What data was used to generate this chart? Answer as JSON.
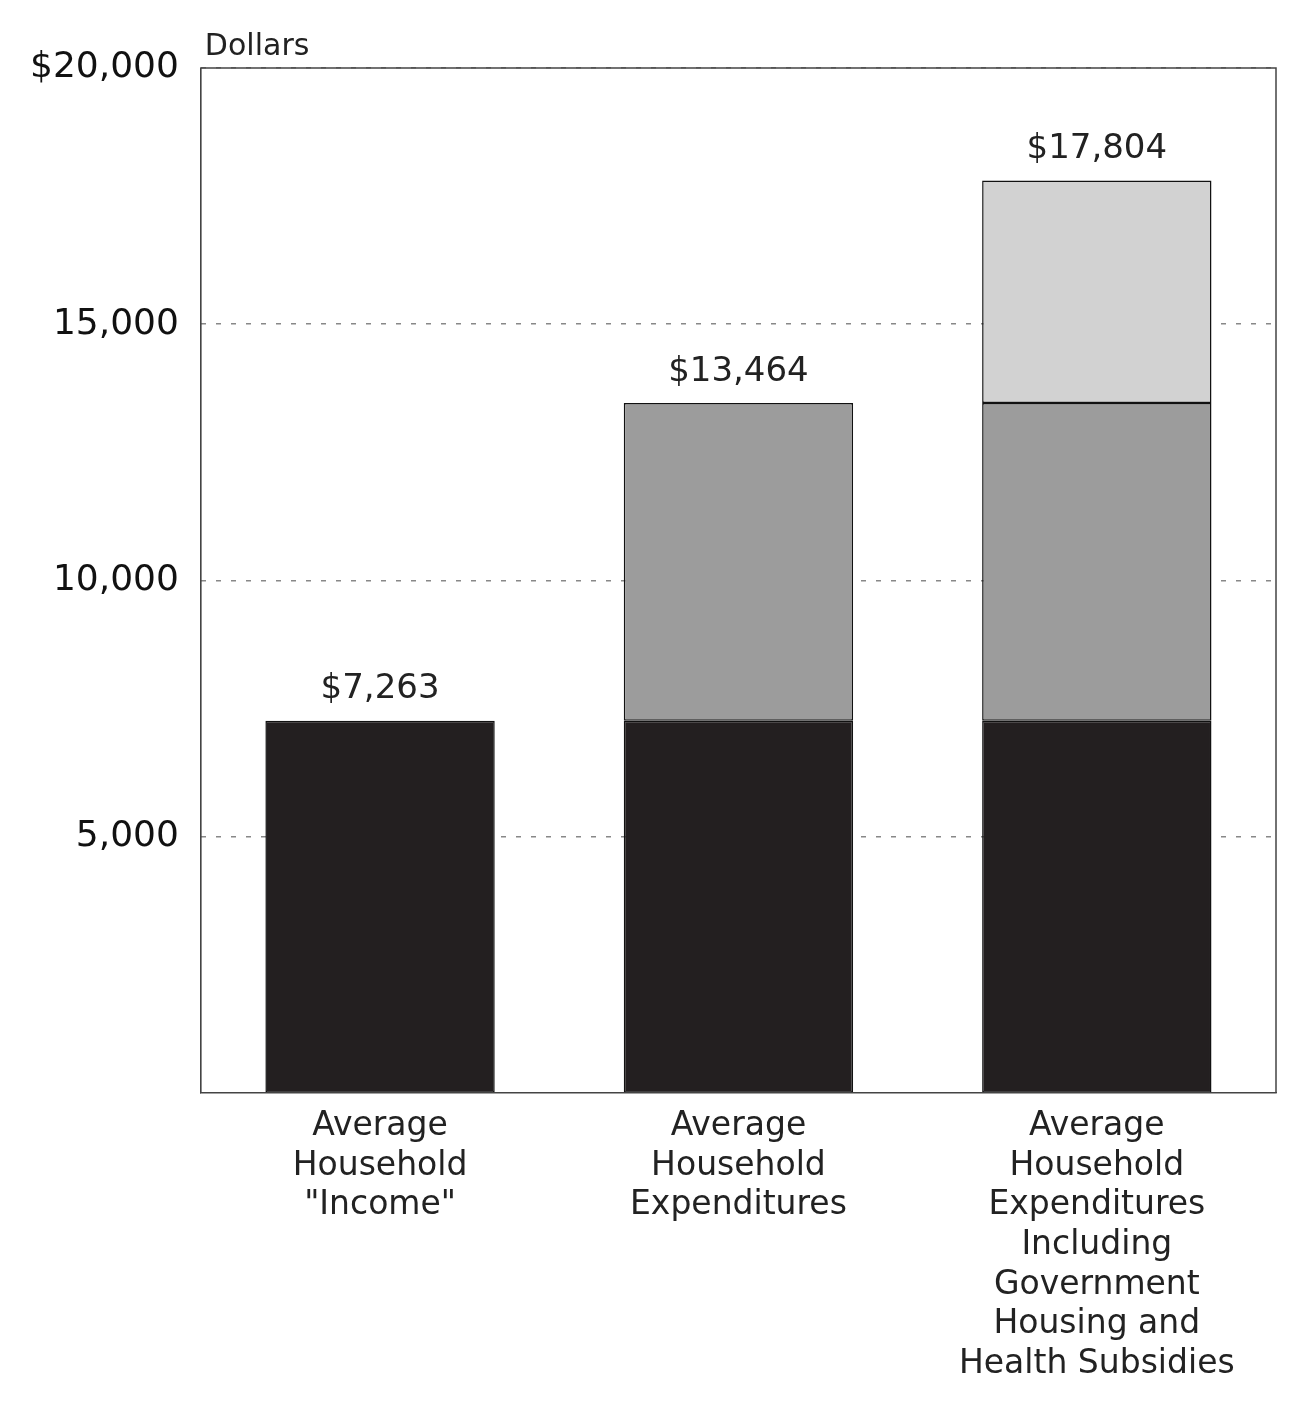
{
  "chart_data": {
    "type": "bar",
    "ylabel": "Dollars",
    "stacked": true,
    "categories": [
      "Average Household \"Income\"",
      "Average Household Expenditures",
      "Average Household Expenditures Including Government Housing and Health Subsidies"
    ],
    "series": [
      {
        "color": "#231f20",
        "values": [
          7263,
          7263,
          7263
        ]
      },
      {
        "color": "#9c9c9c",
        "values": [
          null,
          6201,
          6201
        ]
      },
      {
        "color": "#d2d2d2",
        "values": [
          null,
          null,
          4340
        ]
      }
    ],
    "totals": [
      "$7,263",
      "$13,464",
      "$17,804"
    ],
    "ylim": [
      0,
      20000
    ],
    "yticks": [
      {
        "value": 5000,
        "label": "5,000"
      },
      {
        "value": 10000,
        "label": "10,000"
      },
      {
        "value": 15000,
        "label": "15,000"
      },
      {
        "value": 20000,
        "label": "$20,000"
      }
    ],
    "grid": "y",
    "legend": false
  }
}
